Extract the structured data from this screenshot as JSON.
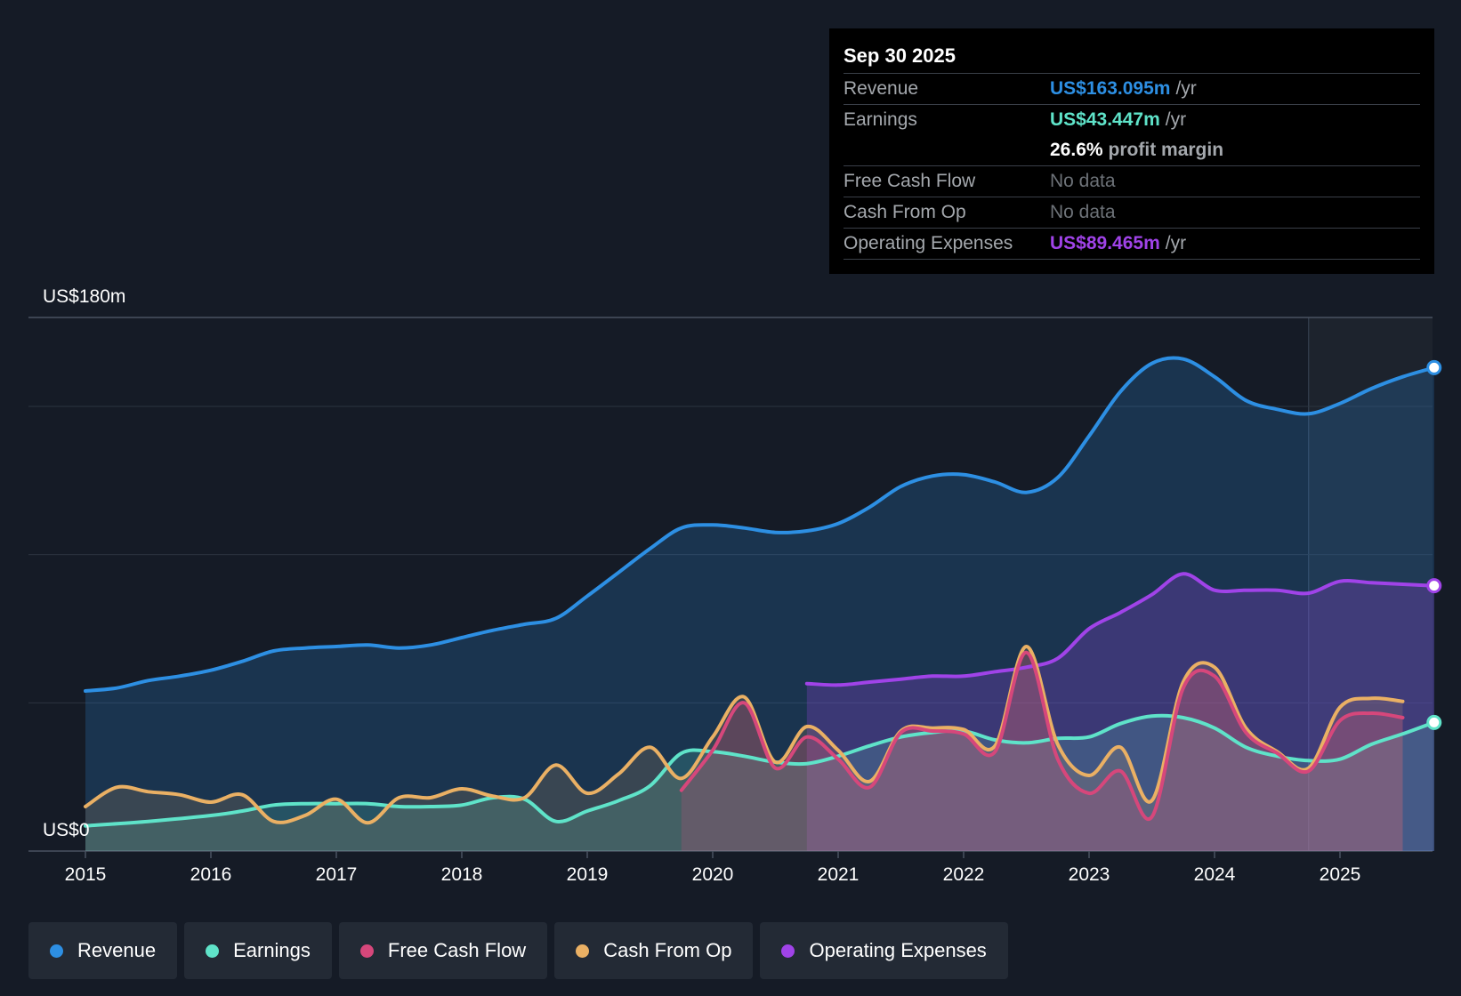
{
  "chart_data": {
    "type": "area",
    "y_top_label": "US$180m",
    "y_bottom_label": "US$0",
    "ylim": [
      0,
      180
    ],
    "xlim": [
      2015,
      2025.75
    ],
    "x_ticks": [
      "2015",
      "2016",
      "2017",
      "2018",
      "2019",
      "2020",
      "2021",
      "2022",
      "2023",
      "2024",
      "2025"
    ],
    "highlight_start": 2024.75,
    "series": [
      {
        "name": "Revenue",
        "color": "#2d8fe3",
        "points": [
          [
            2015,
            54
          ],
          [
            2015.25,
            55
          ],
          [
            2015.5,
            57.5
          ],
          [
            2015.75,
            59
          ],
          [
            2016,
            61
          ],
          [
            2016.25,
            64
          ],
          [
            2016.5,
            67.5
          ],
          [
            2016.75,
            68.5
          ],
          [
            2017,
            69
          ],
          [
            2017.25,
            69.5
          ],
          [
            2017.5,
            68.5
          ],
          [
            2017.75,
            69.5
          ],
          [
            2018,
            72
          ],
          [
            2018.25,
            74.5
          ],
          [
            2018.5,
            76.5
          ],
          [
            2018.75,
            78.5
          ],
          [
            2019,
            86
          ],
          [
            2019.25,
            94
          ],
          [
            2019.5,
            102
          ],
          [
            2019.75,
            109
          ],
          [
            2020,
            110
          ],
          [
            2020.25,
            109
          ],
          [
            2020.5,
            107.5
          ],
          [
            2020.75,
            108
          ],
          [
            2021,
            110.5
          ],
          [
            2021.25,
            116
          ],
          [
            2021.5,
            123
          ],
          [
            2021.75,
            126.5
          ],
          [
            2022,
            127
          ],
          [
            2022.25,
            124.5
          ],
          [
            2022.5,
            121
          ],
          [
            2022.75,
            126
          ],
          [
            2023,
            140
          ],
          [
            2023.25,
            155
          ],
          [
            2023.5,
            164.5
          ],
          [
            2023.75,
            166
          ],
          [
            2024,
            160
          ],
          [
            2024.25,
            152
          ],
          [
            2024.5,
            149
          ],
          [
            2024.75,
            147.5
          ],
          [
            2025,
            151
          ],
          [
            2025.25,
            156
          ],
          [
            2025.5,
            160
          ],
          [
            2025.75,
            163.1
          ]
        ]
      },
      {
        "name": "Earnings",
        "color": "#5fe3c9",
        "points": [
          [
            2015,
            8.5
          ],
          [
            2015.5,
            10
          ],
          [
            2016,
            12
          ],
          [
            2016.25,
            13.5
          ],
          [
            2016.5,
            15.5
          ],
          [
            2016.75,
            16
          ],
          [
            2017,
            16
          ],
          [
            2017.25,
            16
          ],
          [
            2017.5,
            15
          ],
          [
            2017.75,
            15
          ],
          [
            2018,
            15.5
          ],
          [
            2018.25,
            18
          ],
          [
            2018.5,
            17.5
          ],
          [
            2018.75,
            10
          ],
          [
            2019,
            13.5
          ],
          [
            2019.25,
            17
          ],
          [
            2019.5,
            22
          ],
          [
            2019.75,
            33
          ],
          [
            2020,
            33.5
          ],
          [
            2020.25,
            32
          ],
          [
            2020.5,
            30
          ],
          [
            2020.75,
            29.5
          ],
          [
            2021,
            32
          ],
          [
            2021.25,
            35.5
          ],
          [
            2021.5,
            38.5
          ],
          [
            2021.75,
            40
          ],
          [
            2022,
            40.5
          ],
          [
            2022.25,
            37.5
          ],
          [
            2022.5,
            36.5
          ],
          [
            2022.75,
            38
          ],
          [
            2023,
            38.5
          ],
          [
            2023.25,
            43
          ],
          [
            2023.5,
            45.5
          ],
          [
            2023.75,
            45
          ],
          [
            2024,
            41.5
          ],
          [
            2024.25,
            35
          ],
          [
            2024.5,
            32
          ],
          [
            2024.75,
            30.5
          ],
          [
            2025,
            31
          ],
          [
            2025.25,
            36
          ],
          [
            2025.5,
            39.5
          ],
          [
            2025.75,
            43.4
          ]
        ]
      },
      {
        "name": "Free Cash Flow",
        "color": "#d6477b",
        "points": [
          [
            2019.75,
            20.5
          ],
          [
            2020,
            34
          ],
          [
            2020.25,
            50
          ],
          [
            2020.5,
            28
          ],
          [
            2020.75,
            38.5
          ],
          [
            2021,
            31
          ],
          [
            2021.25,
            21.5
          ],
          [
            2021.5,
            40
          ],
          [
            2021.75,
            40.5
          ],
          [
            2022,
            39.5
          ],
          [
            2022.25,
            33.5
          ],
          [
            2022.5,
            67
          ],
          [
            2022.75,
            31
          ],
          [
            2023,
            19.5
          ],
          [
            2023.25,
            27
          ],
          [
            2023.5,
            11.5
          ],
          [
            2023.75,
            55
          ],
          [
            2024,
            59
          ],
          [
            2024.25,
            40
          ],
          [
            2024.5,
            33
          ],
          [
            2024.75,
            27
          ],
          [
            2025,
            44
          ],
          [
            2025.25,
            46.5
          ],
          [
            2025.5,
            45
          ]
        ]
      },
      {
        "name": "Cash From Op",
        "color": "#eab064",
        "points": [
          [
            2015,
            15
          ],
          [
            2015.25,
            21.5
          ],
          [
            2015.5,
            20
          ],
          [
            2015.75,
            19
          ],
          [
            2016,
            16.5
          ],
          [
            2016.25,
            19
          ],
          [
            2016.5,
            10
          ],
          [
            2016.75,
            12
          ],
          [
            2017,
            17.5
          ],
          [
            2017.25,
            9.5
          ],
          [
            2017.5,
            18
          ],
          [
            2017.75,
            18
          ],
          [
            2018,
            21
          ],
          [
            2018.25,
            18.5
          ],
          [
            2018.5,
            18
          ],
          [
            2018.75,
            29
          ],
          [
            2019,
            19.5
          ],
          [
            2019.25,
            26
          ],
          [
            2019.5,
            35
          ],
          [
            2019.75,
            24.5
          ],
          [
            2020,
            38.5
          ],
          [
            2020.25,
            52
          ],
          [
            2020.5,
            30
          ],
          [
            2020.75,
            42
          ],
          [
            2021,
            34
          ],
          [
            2021.25,
            23.5
          ],
          [
            2021.5,
            40.5
          ],
          [
            2021.75,
            41.5
          ],
          [
            2022,
            41
          ],
          [
            2022.25,
            35.5
          ],
          [
            2022.5,
            69
          ],
          [
            2022.75,
            36
          ],
          [
            2023,
            25.5
          ],
          [
            2023.25,
            35
          ],
          [
            2023.5,
            17
          ],
          [
            2023.75,
            57
          ],
          [
            2024,
            62
          ],
          [
            2024.25,
            41.5
          ],
          [
            2024.5,
            33.5
          ],
          [
            2024.75,
            28
          ],
          [
            2025,
            48.5
          ],
          [
            2025.25,
            51.5
          ],
          [
            2025.5,
            50.5
          ]
        ]
      },
      {
        "name": "Operating Expenses",
        "color": "#a043e8",
        "points": [
          [
            2020.75,
            56.5
          ],
          [
            2021,
            56
          ],
          [
            2021.25,
            57
          ],
          [
            2021.5,
            58
          ],
          [
            2021.75,
            59
          ],
          [
            2022,
            59
          ],
          [
            2022.25,
            60.5
          ],
          [
            2022.5,
            62
          ],
          [
            2022.75,
            65
          ],
          [
            2023,
            75
          ],
          [
            2023.25,
            80.5
          ],
          [
            2023.5,
            86.5
          ],
          [
            2023.75,
            93.5
          ],
          [
            2024,
            88
          ],
          [
            2024.25,
            88
          ],
          [
            2024.5,
            88
          ],
          [
            2024.75,
            87
          ],
          [
            2025,
            91
          ],
          [
            2025.25,
            90.5
          ],
          [
            2025.5,
            90
          ],
          [
            2025.75,
            89.5
          ]
        ]
      }
    ]
  },
  "tooltip": {
    "date": "Sep 30 2025",
    "revenue_label": "Revenue",
    "revenue_value": "US$163.095m",
    "revenue_unit": "/yr",
    "earnings_label": "Earnings",
    "earnings_value": "US$43.447m",
    "earnings_unit": "/yr",
    "margin_value": "26.6%",
    "margin_text": "profit margin",
    "fcf_label": "Free Cash Flow",
    "fcf_value": "No data",
    "cfo_label": "Cash From Op",
    "cfo_value": "No data",
    "opex_label": "Operating Expenses",
    "opex_value": "US$89.465m",
    "opex_unit": "/yr"
  },
  "legend": {
    "revenue": "Revenue",
    "earnings": "Earnings",
    "fcf": "Free Cash Flow",
    "cfo": "Cash From Op",
    "opex": "Operating Expenses"
  }
}
